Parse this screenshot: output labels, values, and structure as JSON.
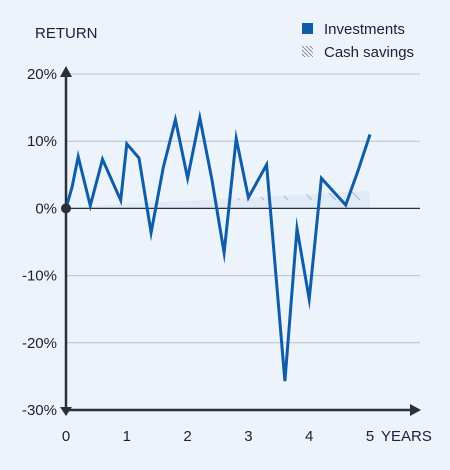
{
  "chart_data": {
    "type": "line",
    "ylabel": "RETURN",
    "xlabel": "YEARS",
    "x_ticks": [
      "0",
      "1",
      "2",
      "3",
      "4",
      "5"
    ],
    "y_ticks": [
      "20%",
      "10%",
      "0%",
      "-10%",
      "-20%",
      "-30%"
    ],
    "xlim": [
      0,
      5
    ],
    "ylim": [
      -30,
      20
    ],
    "grid": "horizontal",
    "legend_position": "top-right",
    "legend": [
      {
        "label": "Investments",
        "style": "solid-square"
      },
      {
        "label": "Cash savings",
        "style": "hatched-square"
      }
    ],
    "series": [
      {
        "name": "Investments",
        "color": "#0f5ca8",
        "x": [
          0,
          0.1,
          0.2,
          0.4,
          0.6,
          0.9,
          1.0,
          1.2,
          1.4,
          1.6,
          1.8,
          2.0,
          2.2,
          2.4,
          2.6,
          2.8,
          3.0,
          3.3,
          3.6,
          3.8,
          4.0,
          4.2,
          4.6,
          4.8,
          5.0
        ],
        "y": [
          0.0,
          3.2,
          7.7,
          0.4,
          7.3,
          1.2,
          9.6,
          7.5,
          -3.6,
          6.1,
          13.2,
          4.5,
          13.5,
          4.3,
          -6.6,
          10.4,
          1.6,
          6.5,
          -25.7,
          -3.0,
          -13.5,
          4.5,
          0.5,
          5.5,
          11.0
        ]
      },
      {
        "name": "Cash savings",
        "color": "#c3cfdc",
        "fill": "#e1ebf7",
        "x": [
          0,
          0.8,
          1.2,
          1.6,
          2.0,
          2.4,
          2.8,
          3.2,
          3.6,
          4.0,
          4.4,
          4.8,
          5.0
        ],
        "y": [
          0.0,
          0.6,
          0.8,
          1.0,
          1.1,
          1.3,
          1.5,
          1.7,
          1.9,
          2.1,
          2.3,
          2.5,
          2.6
        ]
      }
    ]
  }
}
